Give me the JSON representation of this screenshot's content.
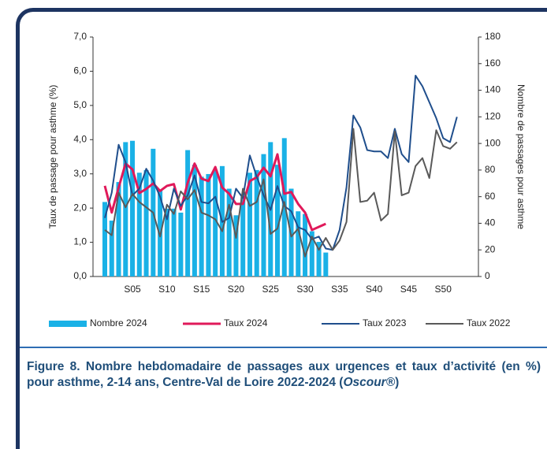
{
  "chart_data": {
    "type": "combo",
    "y_label": "Taux de passage pour asthme (%)",
    "y2_label": "Nombre de passages pour asthme",
    "categories": [
      null,
      null,
      null,
      null,
      "S05",
      null,
      null,
      null,
      null,
      "S10",
      null,
      null,
      null,
      null,
      "S15",
      null,
      null,
      null,
      null,
      "S20",
      null,
      null,
      null,
      null,
      "S25",
      null,
      null,
      null,
      null,
      "S30",
      null,
      null,
      null,
      null,
      "S35",
      null,
      null,
      null,
      null,
      "S40",
      null,
      null,
      null,
      null,
      "S45",
      null,
      null,
      null,
      null,
      "S50",
      null,
      null
    ],
    "ylim": [
      0,
      7
    ],
    "yticks": [
      {
        "value": 0,
        "label": "0,0"
      },
      {
        "value": 1,
        "label": "1,0"
      },
      {
        "value": 2,
        "label": "2,0"
      },
      {
        "value": 3,
        "label": "3,0"
      },
      {
        "value": 4,
        "label": "4,0"
      },
      {
        "value": 5,
        "label": "5,0"
      },
      {
        "value": 6,
        "label": "6,0"
      },
      {
        "value": 7,
        "label": "7,0"
      }
    ],
    "y2lim": [
      0,
      180
    ],
    "y2ticks": [
      0,
      20,
      40,
      60,
      80,
      100,
      120,
      140,
      160,
      180
    ],
    "legend": "bottom",
    "series": [
      {
        "name": "Nombre 2024",
        "type": "bar",
        "axis": "y2",
        "color": "#1ab1e6",
        "values": [
          56,
          42,
          71,
          101,
          102,
          78,
          80,
          96,
          65,
          51,
          51,
          48,
          95,
          84,
          75,
          77,
          80,
          83,
          66,
          46,
          60,
          78,
          80,
          92,
          101,
          84,
          104,
          66,
          49,
          47,
          34,
          26,
          18,
          null,
          null,
          null,
          null,
          null,
          null,
          null,
          null,
          null,
          null,
          null,
          null,
          null,
          null,
          null,
          null,
          null,
          null,
          null
        ]
      },
      {
        "name": "Taux 2024",
        "type": "line",
        "axis": "y",
        "color": "#e0195a",
        "values": [
          2.65,
          1.87,
          2.6,
          3.3,
          3.13,
          2.44,
          2.56,
          2.72,
          2.5,
          2.65,
          2.7,
          1.96,
          2.74,
          3.3,
          2.86,
          2.79,
          3.2,
          2.6,
          2.42,
          2.12,
          2.12,
          2.79,
          2.9,
          3.18,
          2.93,
          3.57,
          2.42,
          2.47,
          2.12,
          1.87,
          1.36,
          1.45,
          1.54,
          null,
          null,
          null,
          null,
          null,
          null,
          null,
          null,
          null,
          null,
          null,
          null,
          null,
          null,
          null,
          null,
          null,
          null,
          null
        ]
      },
      {
        "name": "Taux 2023",
        "type": "line",
        "axis": "y2",
        "color": "#1f4e8c",
        "values": [
          44,
          63,
          99,
          86,
          61,
          66,
          81,
          72,
          60,
          43,
          66,
          53,
          61,
          76,
          56,
          55,
          60,
          41,
          44,
          66,
          59,
          91,
          75,
          61,
          50,
          68,
          53,
          49,
          37,
          35,
          28,
          30,
          21,
          20,
          35,
          67,
          121,
          112,
          95,
          94,
          94,
          89,
          111,
          92,
          86,
          151,
          143,
          131,
          119,
          104,
          101,
          120
        ]
      },
      {
        "name": "Taux 2022",
        "type": "line",
        "axis": "y2",
        "color": "#595959",
        "values": [
          35,
          31,
          63,
          52,
          62,
          56,
          52,
          48,
          30,
          54,
          47,
          64,
          58,
          65,
          48,
          46,
          43,
          34,
          54,
          29,
          66,
          53,
          56,
          73,
          32,
          36,
          56,
          30,
          36,
          15,
          30,
          20,
          29,
          20,
          27,
          41,
          111,
          56,
          57,
          63,
          42,
          47,
          109,
          61,
          63,
          83,
          89,
          74,
          110,
          98,
          96,
          101
        ]
      }
    ],
    "caption": "Figure 8. Nombre hebdomadaire de passages aux urgences et taux d’activité (en %) pour asthme, 2-14 ans, Centre-Val de Loire 2022-2024 (",
    "caption_source": "Oscour®",
    "caption_end": ")"
  }
}
